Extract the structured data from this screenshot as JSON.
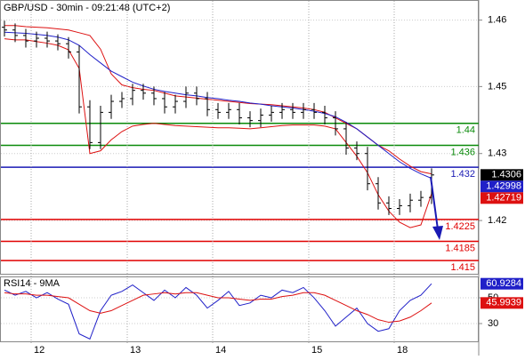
{
  "chart_data": [
    {
      "type": "ohlc",
      "title": "GBP/USD - 30min - 09:21:48 (UTC+2)",
      "open": [
        1.4575,
        1.457,
        1.456,
        1.455,
        1.4555,
        1.455,
        1.4545,
        1.453,
        1.443,
        1.4365,
        1.442,
        1.444,
        1.4445,
        1.446,
        1.4455,
        1.4445,
        1.443,
        1.444,
        1.4455,
        1.4445,
        1.4425,
        1.442,
        1.4425,
        1.441,
        1.4405,
        1.4415,
        1.442,
        1.4425,
        1.442,
        1.4425,
        1.442,
        1.441,
        1.439,
        1.4355,
        1.4345,
        1.429,
        1.4255,
        1.4245,
        1.425,
        1.426,
        1.4265
      ],
      "high": [
        1.4587,
        1.4582,
        1.4572,
        1.4567,
        1.4567,
        1.4562,
        1.4557,
        1.4542,
        1.4442,
        1.4432,
        1.4452,
        1.4457,
        1.4472,
        1.4472,
        1.4467,
        1.4457,
        1.4452,
        1.4467,
        1.4467,
        1.4457,
        1.4437,
        1.4437,
        1.4437,
        1.4422,
        1.4427,
        1.4432,
        1.4437,
        1.4437,
        1.4437,
        1.4437,
        1.4432,
        1.4422,
        1.4402,
        1.4367,
        1.4357,
        1.4302,
        1.4267,
        1.4262,
        1.4272,
        1.4277,
        1.4318
      ],
      "low": [
        1.4558,
        1.4548,
        1.4538,
        1.4538,
        1.4538,
        1.4533,
        1.4518,
        1.4418,
        1.4353,
        1.4353,
        1.4408,
        1.4428,
        1.4433,
        1.4443,
        1.4433,
        1.4418,
        1.4418,
        1.4428,
        1.4433,
        1.4413,
        1.4408,
        1.4408,
        1.4398,
        1.4393,
        1.4393,
        1.4403,
        1.4408,
        1.4408,
        1.4408,
        1.4408,
        1.4398,
        1.4378,
        1.4343,
        1.4333,
        1.4278,
        1.4243,
        1.4233,
        1.4233,
        1.4238,
        1.4248,
        1.4253
      ],
      "close": [
        1.457,
        1.456,
        1.455,
        1.4555,
        1.455,
        1.4545,
        1.453,
        1.443,
        1.4365,
        1.442,
        1.444,
        1.4445,
        1.446,
        1.4455,
        1.4445,
        1.443,
        1.444,
        1.4455,
        1.4445,
        1.4425,
        1.442,
        1.4425,
        1.441,
        1.4405,
        1.4415,
        1.442,
        1.4425,
        1.442,
        1.4425,
        1.442,
        1.441,
        1.439,
        1.4355,
        1.4345,
        1.429,
        1.4255,
        1.4245,
        1.425,
        1.426,
        1.4265,
        1.4306
      ],
      "bar_color": "#000000",
      "close_box_color": "#000000",
      "series": [
        {
          "color": "#dd1111",
          "label_last": false,
          "values": [
            1.4578,
            1.4578,
            1.4576,
            1.4575,
            1.4574,
            1.4572,
            1.457,
            1.4565,
            1.456,
            1.4535,
            1.449,
            1.447,
            1.4465,
            1.4462,
            1.446,
            1.4455,
            1.445,
            1.4448,
            1.4446,
            1.4444,
            1.4442,
            1.444,
            1.4438,
            1.4436,
            1.4435,
            1.4434,
            1.4432,
            1.443,
            1.4428,
            1.4425,
            1.442,
            1.441,
            1.44,
            1.439,
            1.4375,
            1.436,
            1.435,
            1.4335,
            1.4322,
            1.4312,
            1.4308
          ]
        },
        {
          "color": "#2020c8",
          "label_last": true,
          "values": [
            1.4566,
            1.4565,
            1.4564,
            1.4562,
            1.456,
            1.4557,
            1.4552,
            1.4542,
            1.4525,
            1.451,
            1.4495,
            1.4485,
            1.4475,
            1.4468,
            1.4462,
            1.4458,
            1.4455,
            1.4452,
            1.445,
            1.4447,
            1.4445,
            1.4442,
            1.444,
            1.4437,
            1.4435,
            1.4432,
            1.443,
            1.4428,
            1.4425,
            1.4422,
            1.4418,
            1.4412,
            1.4402,
            1.439,
            1.4375,
            1.436,
            1.4345,
            1.433,
            1.4318,
            1.4308,
            1.42998
          ]
        },
        {
          "color": "#dd1111",
          "label_last": true,
          "values": [
            1.4554,
            1.4552,
            1.4552,
            1.4549,
            1.4546,
            1.4542,
            1.4534,
            1.45,
            1.4345,
            1.435,
            1.437,
            1.4385,
            1.4395,
            1.4398,
            1.44,
            1.4398,
            1.4396,
            1.4395,
            1.4394,
            1.4393,
            1.4392,
            1.4392,
            1.4391,
            1.439,
            1.4392,
            1.4394,
            1.4396,
            1.4397,
            1.4397,
            1.4397,
            1.4395,
            1.439,
            1.4365,
            1.434,
            1.431,
            1.427,
            1.424,
            1.422,
            1.421,
            1.4215,
            1.42719
          ]
        }
      ],
      "levels": [
        {
          "value": 1.44,
          "color": "#0a8a0a"
        },
        {
          "value": 1.436,
          "color": "#0a8a0a"
        },
        {
          "value": 1.432,
          "color": "#1a1ab4"
        },
        {
          "value": 1.4225,
          "color": "#e00000"
        },
        {
          "value": 1.4185,
          "color": "#e00000"
        },
        {
          "value": 1.415,
          "color": "#e00000"
        }
      ],
      "ylim": [
        1.4126,
        1.4623
      ],
      "yticks": [
        {
          "value": 1.4588,
          "label": "1.46"
        },
        {
          "value": 1.4467,
          "label": "1.45"
        },
        {
          "value": 1.4345,
          "label": "1.43"
        },
        {
          "value": 1.4223,
          "label": "1.42"
        }
      ],
      "grid": true
    },
    {
      "type": "line",
      "title": "RSI14 - 9MA",
      "categories": [
        null,
        null,
        null,
        "12",
        null,
        null,
        null,
        null,
        null,
        null,
        null,
        null,
        "13",
        null,
        null,
        null,
        null,
        null,
        null,
        null,
        "14",
        null,
        null,
        null,
        null,
        null,
        null,
        null,
        null,
        "15",
        null,
        null,
        null,
        null,
        null,
        null,
        null,
        "18",
        null,
        null,
        null
      ],
      "series": [
        {
          "color": "#2020c8",
          "label_last": true,
          "values": [
            56,
            52,
            55,
            50,
            54,
            49,
            45,
            22,
            18,
            40,
            52,
            55,
            60,
            54,
            48,
            56,
            50,
            58,
            52,
            42,
            48,
            55,
            44,
            46,
            52,
            50,
            56,
            54,
            58,
            50,
            40,
            28,
            35,
            42,
            30,
            24,
            26,
            40,
            48,
            52,
            60.9284
          ]
        },
        {
          "color": "#dd1111",
          "label_last": true,
          "values": [
            54,
            53,
            53,
            52,
            52,
            51,
            50,
            45,
            40,
            38,
            40,
            44,
            48,
            52,
            53,
            54,
            53,
            54,
            54,
            52,
            50,
            50,
            49,
            48,
            49,
            49,
            51,
            52,
            54,
            54,
            52,
            48,
            44,
            40,
            37,
            33,
            31,
            32,
            35,
            40,
            45.9939
          ]
        }
      ],
      "ylim": [
        15.5,
        65.9
      ],
      "yticks": [
        30,
        50
      ],
      "grid": true
    }
  ]
}
